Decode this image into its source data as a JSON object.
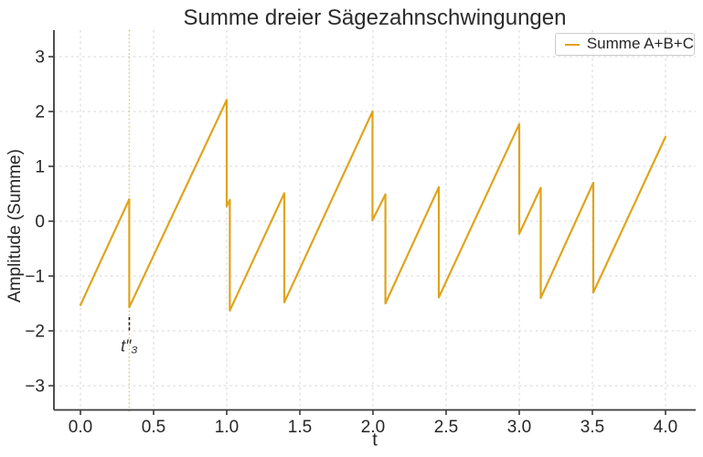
{
  "chart_data": {
    "type": "line",
    "title": "Summe dreier Sägezahnschwingungen",
    "xlabel": "t",
    "ylabel": "Amplitude (Summe)",
    "xlim": [
      -0.18,
      4.21
    ],
    "ylim": [
      -3.44,
      3.48
    ],
    "grid": true,
    "x_ticks": [
      0.0,
      0.5,
      1.0,
      1.5,
      2.0,
      2.5,
      3.0,
      3.5,
      4.0
    ],
    "x_tick_labels": [
      "0.0",
      "0.5",
      "1.0",
      "1.5",
      "2.0",
      "2.5",
      "3.0",
      "3.5",
      "4.0"
    ],
    "y_ticks": [
      -3,
      -2,
      -1,
      0,
      1,
      2,
      3
    ],
    "y_tick_labels": [
      "−3",
      "−2",
      "−1",
      "0",
      "1",
      "2",
      "3"
    ],
    "legend_position": "upper right",
    "series": [
      {
        "name": "Summe A+B+C",
        "color": "#dfa41c",
        "points": [
          [
            0.0,
            -1.53
          ],
          [
            0.334,
            0.4
          ],
          [
            0.334,
            -1.57
          ],
          [
            1.0,
            2.21
          ],
          [
            1.0,
            0.27
          ],
          [
            1.021,
            0.39
          ],
          [
            1.021,
            -1.63
          ],
          [
            1.394,
            0.51
          ],
          [
            1.394,
            -1.48
          ],
          [
            1.997,
            2.0
          ],
          [
            1.997,
            0.02
          ],
          [
            2.085,
            0.49
          ],
          [
            2.085,
            -1.5
          ],
          [
            2.45,
            0.62
          ],
          [
            2.45,
            -1.39
          ],
          [
            3.0,
            1.77
          ],
          [
            3.0,
            -0.23
          ],
          [
            3.147,
            0.61
          ],
          [
            3.147,
            -1.4
          ],
          [
            3.506,
            0.7
          ],
          [
            3.506,
            -1.3
          ],
          [
            4.0,
            1.54
          ]
        ]
      }
    ],
    "annotation": {
      "text": "t″₃",
      "vline_x": 0.334,
      "marker_x": 0.334,
      "marker_y_from": -1.75,
      "marker_y_to": -2.03,
      "text_x": 0.334,
      "text_y": -2.28
    },
    "style": {
      "line_color": "#dfa41c",
      "vline_color": "#daa520",
      "marker_color": "#1a1a1a",
      "grid_color": "#d6d6d6",
      "spine_color": "#3a3a3a",
      "text_color": "#262626",
      "legend_border_color": "#cccccc",
      "background": "#ffffff"
    }
  }
}
